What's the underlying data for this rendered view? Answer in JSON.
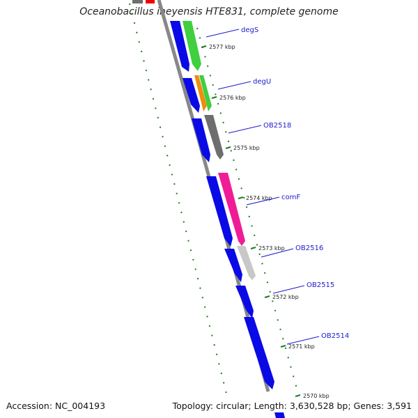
{
  "title": "Oceanobacillus iheyensis HTE831, complete genome",
  "footer": {
    "accession": "Accession: NC_004193",
    "summary": "Topology: circular; Length: 3,630,528 bp; Genes: 3,591"
  },
  "colors": {
    "backbone": "#808080",
    "cds_strand": "#0a0ae6",
    "gene_degS": "#3fcf3f",
    "gene_degU": "#f08c12",
    "gene_OB2518": "#6e6e6e",
    "gene_comF": "#f01c96",
    "gene_OB2516": "#c8c8c8",
    "label_color": "#1a1acc",
    "tick_color": "#1f7a1f"
  },
  "gene_labels": [
    "degS",
    "degU",
    "OB2518",
    "comF",
    "OB2516",
    "OB2515",
    "OB2514"
  ],
  "ticks": [
    "2577 kbp",
    "2576 kbp",
    "2575 kbp",
    "2574 kbp",
    "2573 kbp",
    "2572 kbp",
    "2571 kbp",
    "2570 kbp"
  ]
}
